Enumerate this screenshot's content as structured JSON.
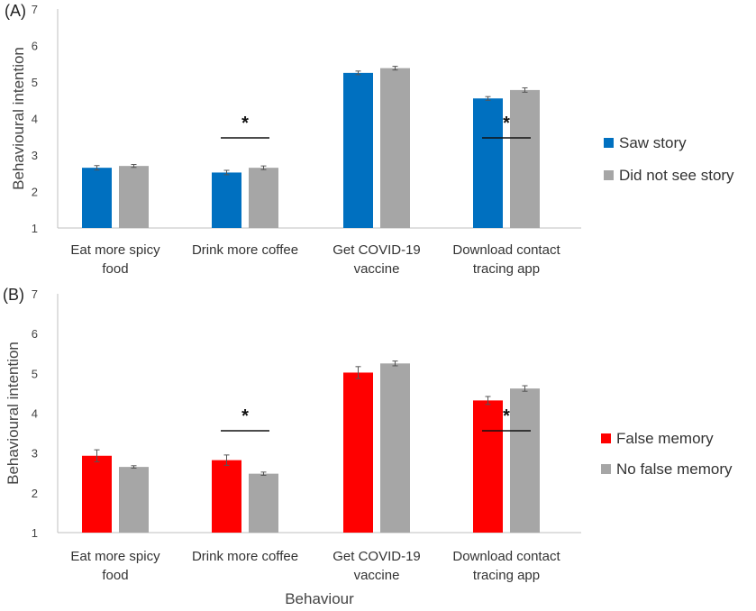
{
  "chart_data": [
    {
      "type": "bar",
      "panel_label": "(A)",
      "ylabel": "Behavioural intention",
      "xlabel": "",
      "ylim": [
        1,
        7
      ],
      "yticks": [
        "1",
        "2",
        "3",
        "4",
        "5",
        "6",
        "7"
      ],
      "grid": false,
      "legend_position": "right",
      "categories": [
        [
          "Eat more spicy",
          "food"
        ],
        [
          "Drink more coffee"
        ],
        [
          "Get COVID-19",
          "vaccine"
        ],
        [
          "Download contact",
          "tracing app"
        ]
      ],
      "series": [
        {
          "name": "Saw story",
          "color": "#0070C0",
          "values": [
            2.65,
            2.52,
            5.25,
            4.55
          ],
          "errors": [
            0.06,
            0.06,
            0.05,
            0.05
          ]
        },
        {
          "name": "Did not see story",
          "color": "#A6A6A6",
          "values": [
            2.7,
            2.65,
            5.38,
            4.78
          ],
          "errors": [
            0.04,
            0.05,
            0.05,
            0.06
          ]
        }
      ],
      "significance": [
        {
          "category_index": 1,
          "label": "*"
        },
        {
          "category_index": 3,
          "label": "*"
        }
      ]
    },
    {
      "type": "bar",
      "panel_label": "(B)",
      "ylabel": "Behavioural intention",
      "xlabel": "Behaviour",
      "ylim": [
        1,
        7
      ],
      "yticks": [
        "1",
        "2",
        "3",
        "4",
        "5",
        "6",
        "7"
      ],
      "grid": false,
      "legend_position": "right",
      "categories": [
        [
          "Eat more spicy",
          "food"
        ],
        [
          "Drink more coffee"
        ],
        [
          "Get COVID-19",
          "vaccine"
        ],
        [
          "Download contact",
          "tracing app"
        ]
      ],
      "series": [
        {
          "name": "False memory",
          "color": "#FF0000",
          "values": [
            2.93,
            2.82,
            5.02,
            4.32
          ],
          "errors": [
            0.15,
            0.13,
            0.15,
            0.1
          ]
        },
        {
          "name": "No false memory",
          "color": "#A6A6A6",
          "values": [
            2.65,
            2.48,
            5.25,
            4.62
          ],
          "errors": [
            0.03,
            0.04,
            0.06,
            0.07
          ]
        }
      ],
      "significance": [
        {
          "category_index": 1,
          "label": "*"
        },
        {
          "category_index": 3,
          "label": "*"
        }
      ]
    }
  ]
}
